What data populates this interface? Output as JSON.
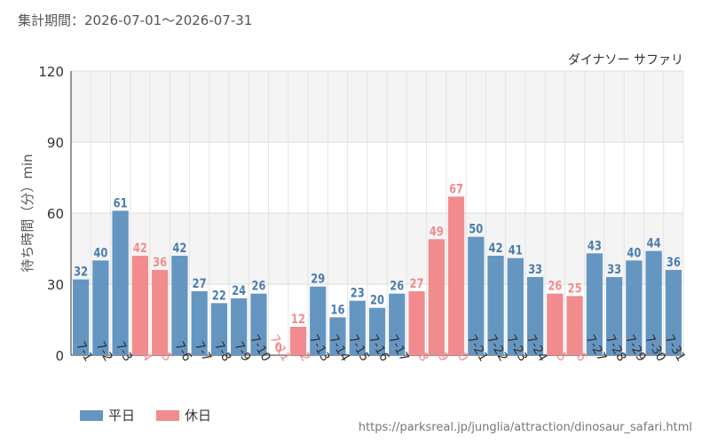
{
  "period_text": "集計期間：2026-07-01〜2026-07-31",
  "source_url": "https://parksreal.jp/junglia/attraction/dinosaur_safari.html",
  "colors": {
    "weekday": "#6596c2",
    "holiday": "#f28b8e",
    "holiday_label": "#f28b8e",
    "weekday_label": "#4a7db0"
  },
  "chart_data": {
    "type": "bar",
    "title": "ダイナソー サファリ",
    "ylabel": "待ち時間（分）min",
    "ylim": [
      0,
      120
    ],
    "yticks": [
      0,
      30,
      60,
      90,
      120
    ],
    "grid": true,
    "legend_position": "bottom-left",
    "categories": [
      "7-1",
      "7-2",
      "7-3",
      "7-4",
      "7-5",
      "7-6",
      "7-7",
      "7-8",
      "7-9",
      "7-10",
      "7-11",
      "7-12",
      "7-13",
      "7-14",
      "7-15",
      "7-16",
      "7-17",
      "7-18",
      "7-19",
      "7-20",
      "7-21",
      "7-22",
      "7-23",
      "7-24",
      "7-25",
      "7-26",
      "7-27",
      "7-28",
      "7-29",
      "7-30",
      "7-31"
    ],
    "values": [
      32,
      40,
      61,
      42,
      36,
      42,
      27,
      22,
      24,
      26,
      0,
      12,
      29,
      16,
      23,
      20,
      26,
      27,
      49,
      67,
      50,
      42,
      41,
      33,
      26,
      25,
      43,
      33,
      40,
      44,
      36
    ],
    "day_type": [
      "weekday",
      "weekday",
      "weekday",
      "holiday",
      "holiday",
      "weekday",
      "weekday",
      "weekday",
      "weekday",
      "weekday",
      "holiday",
      "holiday",
      "weekday",
      "weekday",
      "weekday",
      "weekday",
      "weekday",
      "holiday",
      "holiday",
      "holiday",
      "weekday",
      "weekday",
      "weekday",
      "weekday",
      "holiday",
      "holiday",
      "weekday",
      "weekday",
      "weekday",
      "weekday",
      "weekday"
    ],
    "legend": [
      {
        "key": "weekday",
        "label": "平日"
      },
      {
        "key": "holiday",
        "label": "休日"
      }
    ]
  }
}
